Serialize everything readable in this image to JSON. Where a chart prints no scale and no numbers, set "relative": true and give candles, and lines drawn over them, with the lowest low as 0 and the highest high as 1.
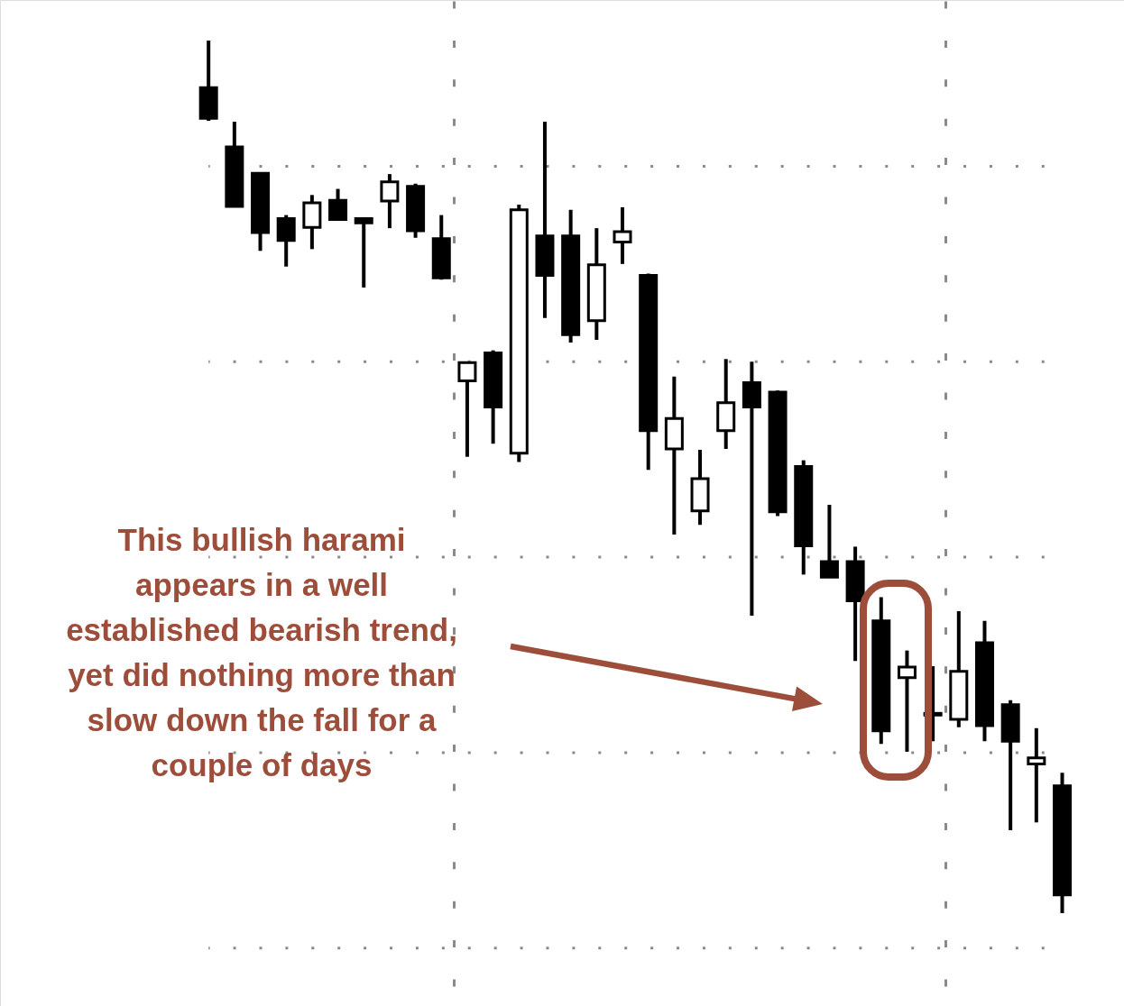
{
  "chart_data": {
    "type": "candlestick",
    "relative": true,
    "color": "#000000",
    "categories": [
      null,
      null,
      null,
      null,
      null,
      null,
      null,
      null,
      null,
      null,
      null,
      null,
      null,
      null,
      null,
      null,
      null,
      null,
      null,
      null,
      null,
      null,
      null,
      null,
      null,
      null,
      null,
      null,
      null,
      null,
      null,
      null,
      null,
      null
    ],
    "ohlc": [
      [
        0.946,
        1.0,
        0.908,
        0.911
      ],
      [
        0.878,
        0.907,
        0.81,
        0.81
      ],
      [
        0.848,
        0.848,
        0.759,
        0.78
      ],
      [
        0.796,
        0.8,
        0.741,
        0.771
      ],
      [
        0.786,
        0.823,
        0.761,
        0.814
      ],
      [
        0.817,
        0.83,
        0.795,
        0.795
      ],
      [
        0.796,
        0.796,
        0.717,
        0.791
      ],
      [
        0.816,
        0.847,
        0.785,
        0.838
      ],
      [
        0.833,
        0.836,
        0.774,
        0.782
      ],
      [
        0.773,
        0.8,
        0.726,
        0.728
      ],
      [
        0.61,
        0.631,
        0.523,
        0.631
      ],
      [
        0.642,
        0.645,
        0.538,
        0.58
      ],
      [
        0.527,
        0.812,
        0.517,
        0.806
      ],
      [
        0.776,
        0.907,
        0.682,
        0.731
      ],
      [
        0.776,
        0.806,
        0.654,
        0.663
      ],
      [
        0.679,
        0.785,
        0.657,
        0.743
      ],
      [
        0.769,
        0.809,
        0.744,
        0.781
      ],
      [
        0.731,
        0.733,
        0.508,
        0.553
      ],
      [
        0.532,
        0.615,
        0.434,
        0.567
      ],
      [
        0.461,
        0.531,
        0.445,
        0.498
      ],
      [
        0.553,
        0.635,
        0.532,
        0.585
      ],
      [
        0.608,
        0.632,
        0.341,
        0.58
      ],
      [
        0.597,
        0.599,
        0.455,
        0.46
      ],
      [
        0.512,
        0.519,
        0.388,
        0.421
      ],
      [
        0.403,
        0.468,
        0.385,
        0.385
      ],
      [
        0.403,
        0.42,
        0.289,
        0.358
      ],
      [
        0.335,
        0.362,
        0.194,
        0.209
      ],
      [
        0.27,
        0.301,
        0.185,
        0.282
      ],
      [
        0.229,
        0.283,
        0.197,
        0.227
      ],
      [
        0.222,
        0.346,
        0.213,
        0.277
      ],
      [
        0.31,
        0.335,
        0.197,
        0.215
      ],
      [
        0.239,
        0.244,
        0.095,
        0.197
      ],
      [
        0.171,
        0.212,
        0.104,
        0.178
      ],
      [
        0.146,
        0.161,
        0.0,
        0.021
      ]
    ],
    "ref_lines": [
      {
        "axis": "y",
        "value": 0.856,
        "color": "#8a8a8a",
        "line_style": "dotted"
      },
      {
        "axis": "y",
        "value": 0.632,
        "color": "#8a8a8a",
        "line_style": "dotted"
      },
      {
        "axis": "y",
        "value": 0.408,
        "color": "#8a8a8a",
        "line_style": "dotted"
      },
      {
        "axis": "y",
        "value": 0.184,
        "color": "#8a8a8a",
        "line_style": "dotted"
      },
      {
        "axis": "y",
        "value": -0.04,
        "color": "#8a8a8a",
        "line_style": "dotted"
      }
    ],
    "annotations": [
      "This bullish harami appears in a well established bearish trend, yet did nothing more than slow down the fall for a couple of days"
    ]
  }
}
